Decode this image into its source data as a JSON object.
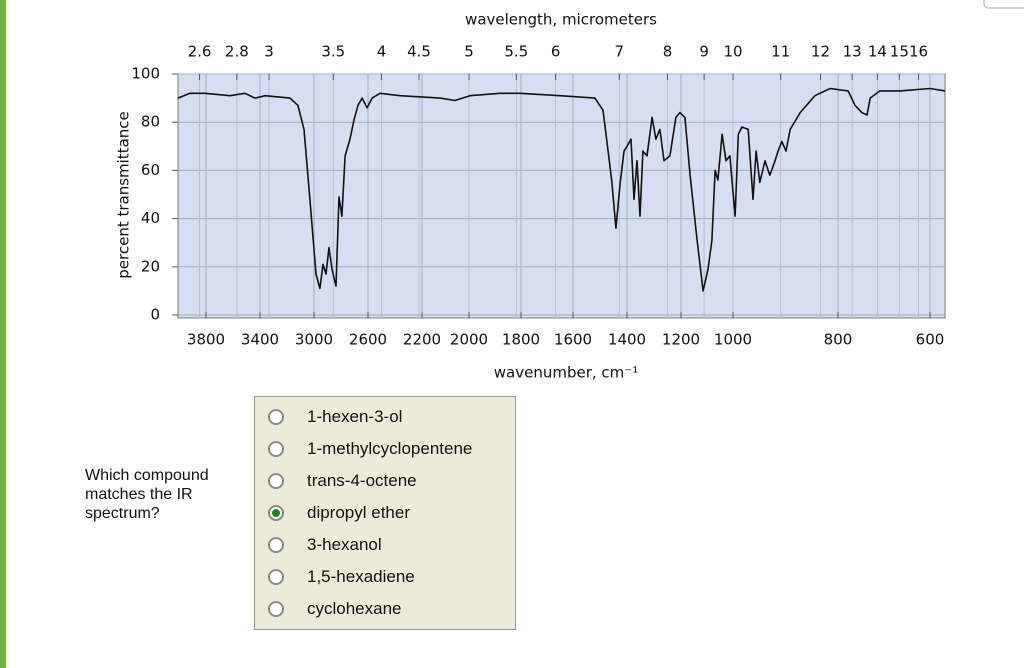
{
  "chart_data": {
    "type": "line",
    "x_label_top": "wavelength, micrometers",
    "x_label": "wavenumber, cm⁻¹",
    "y_label": "percent transmittance",
    "x": [
      4000,
      3914,
      3807,
      3622,
      3511,
      3437,
      3363,
      3178,
      3119,
      3074,
      3030,
      2985,
      2956,
      2933,
      2911,
      2889,
      2867,
      2837,
      2815,
      2793,
      2770,
      2733,
      2704,
      2674,
      2644,
      2607,
      2570,
      2511,
      2363,
      2123,
      2060,
      1996,
      1881,
      1804,
      1650,
      1519,
      1489,
      1470,
      1456,
      1441,
      1426,
      1411,
      1400,
      1385,
      1374,
      1363,
      1352,
      1341,
      1326,
      1307,
      1293,
      1278,
      1263,
      1241,
      1219,
      1204,
      1185,
      1165,
      1138,
      1115,
      1096,
      1081,
      1069,
      1058,
      1042,
      1027,
      1012,
      996,
      990,
      983,
      971,
      962,
      956,
      949,
      939,
      930,
      920,
      914,
      907,
      899,
      891,
      872,
      844,
      815,
      778,
      763,
      748,
      737,
      730,
      709,
      665,
      600,
      570
    ],
    "values": [
      90,
      92,
      92,
      91,
      92,
      90,
      91,
      90,
      87,
      77,
      48,
      17,
      11,
      21,
      17,
      28,
      19,
      12,
      49,
      41,
      66,
      73,
      81,
      87,
      90,
      86,
      90,
      92,
      91,
      90,
      89,
      91,
      92,
      92,
      91,
      90,
      85,
      68,
      55,
      36,
      54,
      68,
      70,
      73,
      48,
      64,
      41,
      68,
      66,
      82,
      73,
      77,
      64,
      66,
      82,
      84,
      82,
      58,
      31,
      10,
      19,
      31,
      60,
      56,
      75,
      64,
      66,
      41,
      75,
      78,
      77,
      48,
      68,
      55,
      64,
      58,
      64,
      68,
      72,
      68,
      77,
      84,
      91,
      94,
      93,
      87,
      84,
      83,
      90,
      93,
      93,
      94,
      93
    ],
    "color": "#111111",
    "xlim": [
      4000,
      570
    ],
    "xticks": [
      3800,
      3400,
      3000,
      2600,
      2200,
      2000,
      1800,
      1600,
      1400,
      1200,
      1000,
      800,
      600
    ],
    "x2ticks": [
      2.6,
      2.8,
      3,
      3.5,
      4,
      4.5,
      5,
      5.5,
      6,
      7,
      8,
      9,
      10,
      11,
      12,
      13,
      14,
      15,
      16
    ],
    "ylim": [
      0,
      100
    ],
    "yticks": [
      0,
      20,
      40,
      60,
      80,
      100
    ],
    "grid": true
  },
  "question": "Which compound matches the IR spectrum?",
  "options": [
    {
      "label": "1-hexen-3-ol",
      "selected": false
    },
    {
      "label": "1-methylcyclopentene",
      "selected": false
    },
    {
      "label": "trans-4-octene",
      "selected": false
    },
    {
      "label": "dipropyl ether",
      "selected": true
    },
    {
      "label": "3-hexanol",
      "selected": false
    },
    {
      "label": "1,5-hexadiene",
      "selected": false
    },
    {
      "label": "cyclohexane",
      "selected": false
    }
  ]
}
